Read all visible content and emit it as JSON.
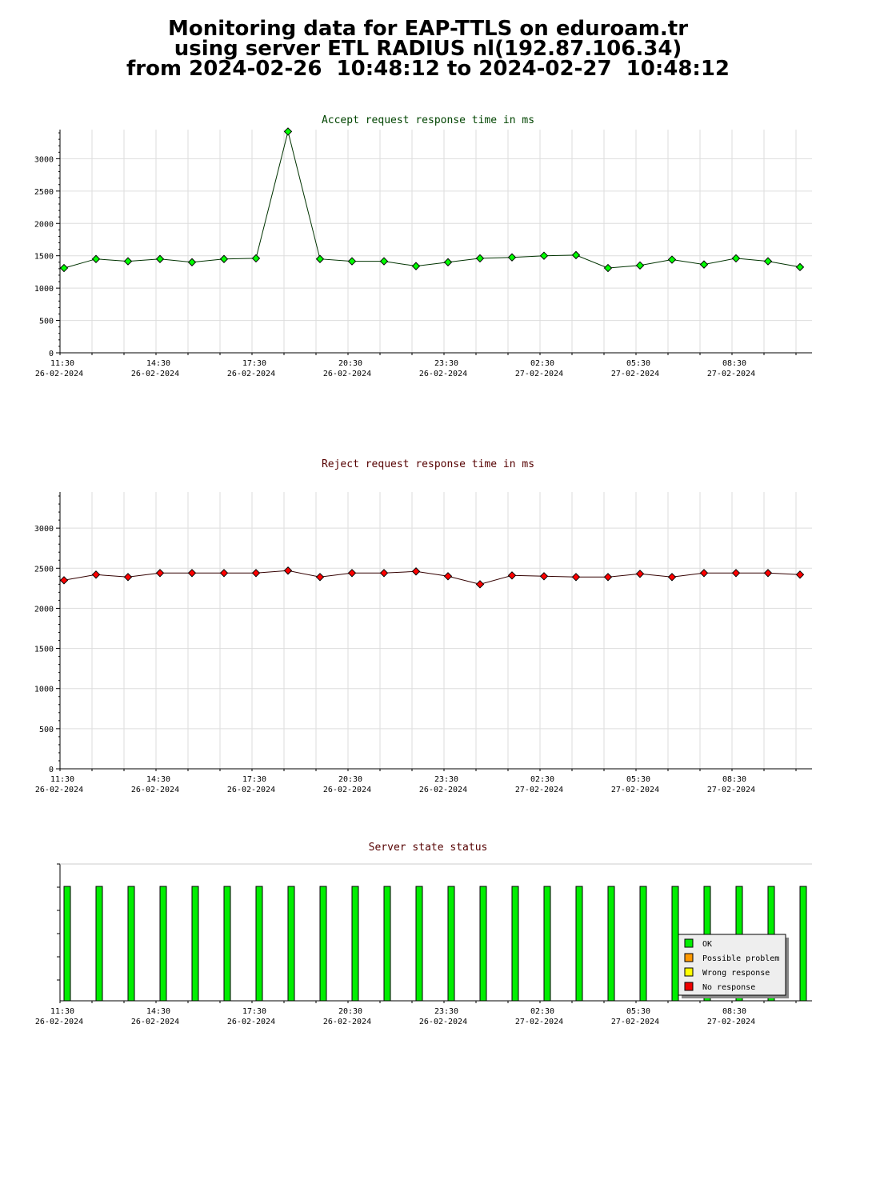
{
  "header": {
    "line1": "Monitoring data for EAP-TTLS on eduroam.tr",
    "line2": "using server ETL RADIUS nl(192.87.106.34)",
    "line3": "from 2024-02-26  10:48:12 to 2024-02-27  10:48:12"
  },
  "colors": {
    "accept_line": "#003300",
    "accept_marker": "#00ff00",
    "reject_line": "#330000",
    "reject_marker": "#ff0000",
    "accept_title": "#004400",
    "reject_title": "#550000",
    "status_title": "#550000",
    "grid": "#dddddd",
    "ok": "#00ee00",
    "possible_problem": "#ff9900",
    "wrong_response": "#ffff00",
    "no_response": "#ee0000"
  },
  "x_axis_ticks": [
    {
      "time": "11:30",
      "date": "26-02-2024"
    },
    {
      "time": "14:30",
      "date": "26-02-2024"
    },
    {
      "time": "17:30",
      "date": "26-02-2024"
    },
    {
      "time": "20:30",
      "date": "26-02-2024"
    },
    {
      "time": "23:30",
      "date": "26-02-2024"
    },
    {
      "time": "02:30",
      "date": "27-02-2024"
    },
    {
      "time": "05:30",
      "date": "27-02-2024"
    },
    {
      "time": "08:30",
      "date": "27-02-2024"
    }
  ],
  "chart_data": [
    {
      "type": "line",
      "title": "Accept request response time in ms",
      "xlabel": "",
      "ylabel": "",
      "ylim": [
        0,
        3450
      ],
      "yticks": [
        0,
        500,
        1000,
        1500,
        2000,
        2500,
        3000
      ],
      "grid": true,
      "x": [
        "2024-02-26 11:30",
        "2024-02-26 12:30",
        "2024-02-26 13:30",
        "2024-02-26 14:30",
        "2024-02-26 15:30",
        "2024-02-26 16:30",
        "2024-02-26 17:30",
        "2024-02-26 18:30",
        "2024-02-26 19:30",
        "2024-02-26 20:30",
        "2024-02-26 21:30",
        "2024-02-26 22:30",
        "2024-02-26 23:30",
        "2024-02-27 00:30",
        "2024-02-27 01:30",
        "2024-02-27 02:30",
        "2024-02-27 03:30",
        "2024-02-27 04:30",
        "2024-02-27 05:30",
        "2024-02-27 06:30",
        "2024-02-27 07:30",
        "2024-02-27 08:30",
        "2024-02-27 09:30",
        "2024-02-27 10:30"
      ],
      "series": [
        {
          "values": [
            1310,
            1450,
            1415,
            1450,
            1400,
            1450,
            1460,
            3420,
            1450,
            1415,
            1415,
            1340,
            1400,
            1460,
            1475,
            1500,
            1510,
            1310,
            1350,
            1440,
            1365,
            1460,
            1415,
            1325
          ]
        }
      ]
    },
    {
      "type": "line",
      "title": "Reject request response time in ms",
      "xlabel": "",
      "ylabel": "",
      "ylim": [
        0,
        3450
      ],
      "yticks": [
        0,
        500,
        1000,
        1500,
        2000,
        2500,
        3000
      ],
      "grid": true,
      "x": [
        "2024-02-26 11:30",
        "2024-02-26 12:30",
        "2024-02-26 13:30",
        "2024-02-26 14:30",
        "2024-02-26 15:30",
        "2024-02-26 16:30",
        "2024-02-26 17:30",
        "2024-02-26 18:30",
        "2024-02-26 19:30",
        "2024-02-26 20:30",
        "2024-02-26 21:30",
        "2024-02-26 22:30",
        "2024-02-26 23:30",
        "2024-02-27 00:30",
        "2024-02-27 01:30",
        "2024-02-27 02:30",
        "2024-02-27 03:30",
        "2024-02-27 04:30",
        "2024-02-27 05:30",
        "2024-02-27 06:30",
        "2024-02-27 07:30",
        "2024-02-27 08:30",
        "2024-02-27 09:30",
        "2024-02-27 10:30"
      ],
      "series": [
        {
          "values": [
            2350,
            2420,
            2390,
            2440,
            2440,
            2440,
            2440,
            2470,
            2390,
            2440,
            2440,
            2460,
            2400,
            2300,
            2410,
            2400,
            2390,
            2390,
            2430,
            2390,
            2440,
            2440,
            2440,
            2420
          ]
        }
      ]
    },
    {
      "type": "bar",
      "title": "Server state status",
      "xlabel": "",
      "ylabel": "",
      "grid": false,
      "legend": "bottom-right",
      "legend_entries": [
        "OK",
        "Possible problem",
        "Wrong response",
        "No response"
      ],
      "x": [
        "2024-02-26 11:30",
        "2024-02-26 12:30",
        "2024-02-26 13:30",
        "2024-02-26 14:30",
        "2024-02-26 15:30",
        "2024-02-26 16:30",
        "2024-02-26 17:30",
        "2024-02-26 18:30",
        "2024-02-26 19:30",
        "2024-02-26 20:30",
        "2024-02-26 21:30",
        "2024-02-26 22:30",
        "2024-02-26 23:30",
        "2024-02-27 00:30",
        "2024-02-27 01:30",
        "2024-02-27 02:30",
        "2024-02-27 03:30",
        "2024-02-27 04:30",
        "2024-02-27 05:30",
        "2024-02-27 06:30",
        "2024-02-27 07:30",
        "2024-02-27 08:30",
        "2024-02-27 09:30",
        "2024-02-27 10:30"
      ],
      "states": [
        "OK",
        "OK",
        "OK",
        "OK",
        "OK",
        "OK",
        "OK",
        "OK",
        "OK",
        "OK",
        "OK",
        "OK",
        "OK",
        "OK",
        "OK",
        "OK",
        "OK",
        "OK",
        "OK",
        "OK",
        "OK",
        "OK",
        "OK",
        "OK"
      ]
    }
  ]
}
